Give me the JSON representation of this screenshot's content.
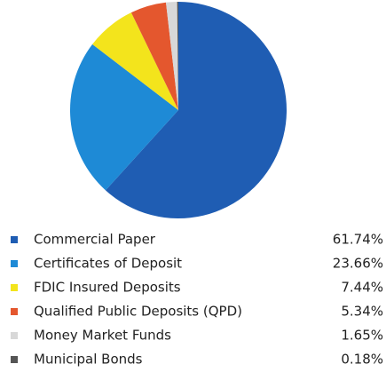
{
  "chart_data": {
    "type": "pie",
    "categories": [
      "Commercial Paper",
      "Certificates of Deposit",
      "FDIC Insured Deposits",
      "Qualified Public Deposits (QPD)",
      "Money Market Funds",
      "Municipal Bonds"
    ],
    "values": [
      61.74,
      23.66,
      7.44,
      5.34,
      1.65,
      0.18
    ],
    "value_labels": [
      "61.74%",
      "23.66%",
      "7.44%",
      "5.34%",
      "1.65%",
      "0.18%"
    ],
    "colors": [
      "#1f5db3",
      "#1e8ad6",
      "#f3e41c",
      "#e4572e",
      "#d8d8d8",
      "#555555"
    ]
  }
}
